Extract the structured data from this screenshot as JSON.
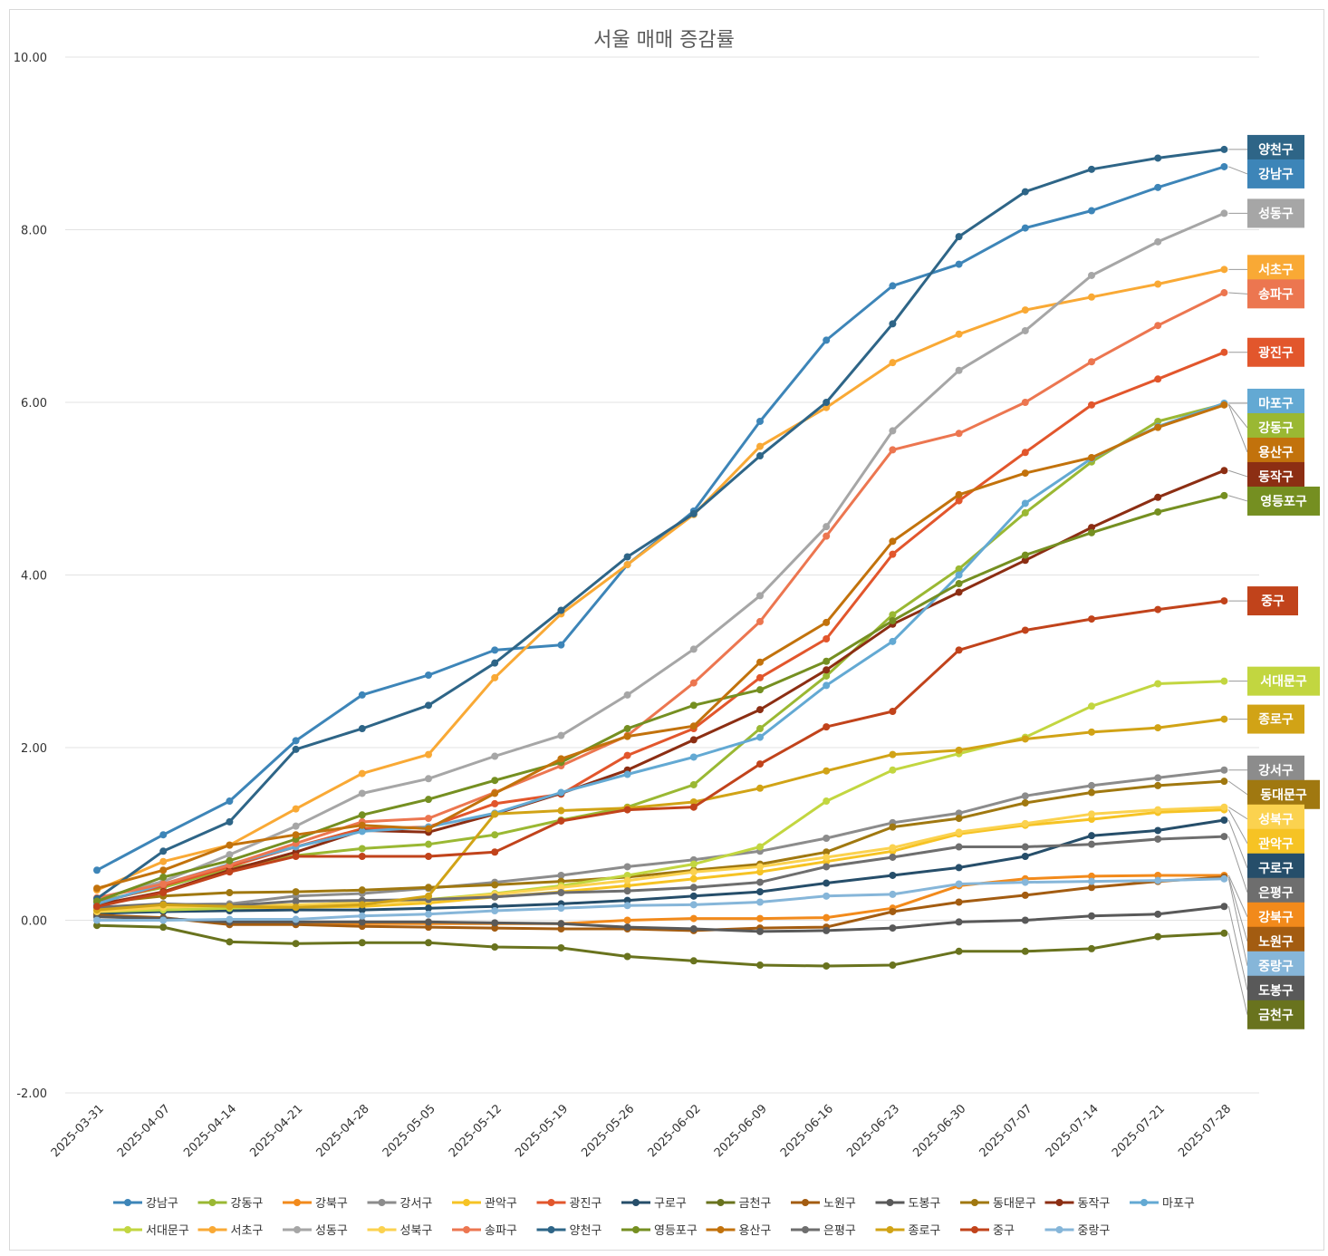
{
  "chart_data": {
    "type": "line",
    "title": "서울 매매 증감률",
    "ylim": [
      -2,
      10
    ],
    "yticks": [
      "10.00",
      "8.00",
      "6.00",
      "4.00",
      "2.00",
      "0.00",
      "-2.00"
    ],
    "grid": true,
    "legend": "bottom",
    "x": [
      "2025-03-31",
      "2025-04-07",
      "2025-04-14",
      "2025-04-21",
      "2025-04-28",
      "2025-05-05",
      "2025-05-12",
      "2025-05-19",
      "2025-05-26",
      "2025-06-02",
      "2025-06-09",
      "2025-06-16",
      "2025-06-23",
      "2025-06-30",
      "2025-07-07",
      "2025-07-14",
      "2025-07-21",
      "2025-07-28"
    ],
    "series": [
      {
        "name": "강남구",
        "color": "#3d85b8",
        "values": [
          0.58,
          0.99,
          1.38,
          2.08,
          2.61,
          2.84,
          3.13,
          3.19,
          4.12,
          4.74,
          5.78,
          6.72,
          7.35,
          7.6,
          8.02,
          8.22,
          8.49,
          8.73
        ]
      },
      {
        "name": "강동구",
        "color": "#9ab833",
        "values": [
          0.22,
          0.38,
          0.6,
          0.75,
          0.83,
          0.88,
          0.99,
          1.16,
          1.31,
          1.57,
          2.22,
          2.83,
          3.54,
          4.07,
          4.72,
          5.31,
          5.78,
          5.98
        ]
      },
      {
        "name": "강북구",
        "color": "#f28a1b",
        "values": [
          0.05,
          0.02,
          -0.02,
          -0.03,
          -0.04,
          -0.04,
          -0.04,
          -0.04,
          0.0,
          0.02,
          0.02,
          0.03,
          0.14,
          0.4,
          0.48,
          0.51,
          0.52,
          0.52
        ]
      },
      {
        "name": "강서구",
        "color": "#8c8c8c",
        "values": [
          0.15,
          0.18,
          0.19,
          0.28,
          0.31,
          0.37,
          0.44,
          0.52,
          0.62,
          0.7,
          0.8,
          0.95,
          1.13,
          1.24,
          1.44,
          1.56,
          1.65,
          1.74
        ]
      },
      {
        "name": "관악구",
        "color": "#f6c324",
        "values": [
          0.08,
          0.12,
          0.14,
          0.15,
          0.16,
          0.2,
          0.27,
          0.33,
          0.4,
          0.48,
          0.56,
          0.68,
          0.8,
          1.0,
          1.1,
          1.17,
          1.25,
          1.28
        ]
      },
      {
        "name": "광진구",
        "color": "#e2562c",
        "values": [
          0.2,
          0.4,
          0.62,
          0.85,
          1.06,
          1.08,
          1.35,
          1.46,
          1.91,
          2.22,
          2.81,
          3.26,
          4.24,
          4.86,
          5.42,
          5.97,
          6.27,
          6.58
        ]
      },
      {
        "name": "구로구",
        "color": "#264e6a",
        "values": [
          0.08,
          0.1,
          0.11,
          0.12,
          0.12,
          0.14,
          0.16,
          0.19,
          0.23,
          0.28,
          0.33,
          0.43,
          0.52,
          0.61,
          0.74,
          0.98,
          1.04,
          1.16
        ]
      },
      {
        "name": "금천구",
        "color": "#69731e",
        "values": [
          -0.06,
          -0.08,
          -0.25,
          -0.27,
          -0.26,
          -0.26,
          -0.31,
          -0.32,
          -0.42,
          -0.47,
          -0.52,
          -0.53,
          -0.52,
          -0.36,
          -0.36,
          -0.33,
          -0.19,
          -0.15
        ]
      },
      {
        "name": "노원구",
        "color": "#a35c11",
        "values": [
          0.06,
          0.03,
          -0.05,
          -0.05,
          -0.07,
          -0.08,
          -0.09,
          -0.1,
          -0.1,
          -0.12,
          -0.09,
          -0.08,
          0.1,
          0.21,
          0.29,
          0.38,
          0.45,
          0.5
        ]
      },
      {
        "name": "도봉구",
        "color": "#595959",
        "values": [
          0.04,
          0.02,
          -0.02,
          -0.02,
          -0.02,
          -0.02,
          -0.03,
          -0.04,
          -0.08,
          -0.1,
          -0.13,
          -0.12,
          -0.09,
          -0.02,
          0.0,
          0.05,
          0.07,
          0.16
        ]
      },
      {
        "name": "동대문구",
        "color": "#a07810",
        "values": [
          0.2,
          0.28,
          0.32,
          0.33,
          0.35,
          0.38,
          0.41,
          0.45,
          0.5,
          0.58,
          0.65,
          0.79,
          1.08,
          1.18,
          1.36,
          1.48,
          1.56,
          1.61
        ]
      },
      {
        "name": "동작구",
        "color": "#8c2e13",
        "values": [
          0.18,
          0.33,
          0.58,
          0.79,
          1.04,
          1.02,
          1.23,
          1.47,
          1.74,
          2.09,
          2.44,
          2.9,
          3.43,
          3.8,
          4.17,
          4.55,
          4.9,
          5.21
        ]
      },
      {
        "name": "마포구",
        "color": "#63a9d3",
        "values": [
          0.19,
          0.42,
          0.65,
          0.85,
          1.03,
          1.08,
          1.24,
          1.48,
          1.69,
          1.89,
          2.12,
          2.72,
          3.23,
          4.0,
          4.83,
          5.35,
          5.72,
          5.99
        ]
      },
      {
        "name": "서대문구",
        "color": "#c2d640",
        "values": [
          0.1,
          0.12,
          0.14,
          0.17,
          0.21,
          0.24,
          0.31,
          0.4,
          0.52,
          0.65,
          0.85,
          1.38,
          1.74,
          1.93,
          2.12,
          2.48,
          2.74,
          2.77
        ]
      },
      {
        "name": "서초구",
        "color": "#f9a935",
        "values": [
          0.35,
          0.68,
          0.87,
          1.29,
          1.7,
          1.92,
          2.81,
          3.55,
          4.12,
          4.7,
          5.49,
          5.94,
          6.46,
          6.79,
          7.07,
          7.22,
          7.37,
          7.54
        ]
      },
      {
        "name": "성동구",
        "color": "#a6a6a6",
        "values": [
          0.25,
          0.45,
          0.76,
          1.09,
          1.47,
          1.64,
          1.9,
          2.14,
          2.61,
          3.14,
          3.76,
          4.56,
          5.67,
          6.37,
          6.83,
          7.47,
          7.86,
          8.19
        ]
      },
      {
        "name": "성북구",
        "color": "#fbd24f",
        "values": [
          0.1,
          0.15,
          0.17,
          0.18,
          0.2,
          0.23,
          0.3,
          0.38,
          0.46,
          0.56,
          0.62,
          0.73,
          0.84,
          1.02,
          1.12,
          1.23,
          1.28,
          1.31
        ]
      },
      {
        "name": "송파구",
        "color": "#ec7650",
        "values": [
          0.26,
          0.42,
          0.64,
          0.89,
          1.14,
          1.18,
          1.48,
          1.79,
          2.14,
          2.75,
          3.46,
          4.45,
          5.45,
          5.64,
          6.0,
          6.47,
          6.89,
          7.27
        ]
      },
      {
        "name": "양천구",
        "color": "#2e6587",
        "values": [
          0.25,
          0.8,
          1.14,
          1.98,
          2.22,
          2.49,
          2.98,
          3.59,
          4.21,
          4.71,
          5.38,
          6.0,
          6.91,
          7.92,
          8.44,
          8.7,
          8.83,
          8.93
        ]
      },
      {
        "name": "영등포구",
        "color": "#758f21",
        "values": [
          0.22,
          0.5,
          0.69,
          0.94,
          1.22,
          1.4,
          1.62,
          1.83,
          2.22,
          2.49,
          2.67,
          3.0,
          3.47,
          3.9,
          4.23,
          4.49,
          4.73,
          4.92
        ]
      },
      {
        "name": "용산구",
        "color": "#c2720c",
        "values": [
          0.37,
          0.58,
          0.87,
          0.99,
          1.1,
          1.06,
          1.47,
          1.87,
          2.13,
          2.25,
          2.99,
          3.45,
          4.39,
          4.93,
          5.18,
          5.36,
          5.71,
          5.97
        ]
      },
      {
        "name": "은평구",
        "color": "#6e6e6e",
        "values": [
          0.15,
          0.19,
          0.17,
          0.22,
          0.23,
          0.24,
          0.27,
          0.32,
          0.34,
          0.38,
          0.44,
          0.62,
          0.73,
          0.85,
          0.85,
          0.88,
          0.94,
          0.97
        ]
      },
      {
        "name": "종로구",
        "color": "#d1a316",
        "values": [
          0.12,
          0.18,
          0.16,
          0.15,
          0.18,
          0.28,
          1.23,
          1.27,
          1.3,
          1.37,
          1.53,
          1.73,
          1.92,
          1.97,
          2.1,
          2.18,
          2.23,
          2.33
        ]
      },
      {
        "name": "중구",
        "color": "#c1431b",
        "values": [
          0.16,
          0.32,
          0.56,
          0.74,
          0.74,
          0.74,
          0.79,
          1.15,
          1.28,
          1.31,
          1.81,
          2.24,
          2.42,
          3.13,
          3.36,
          3.49,
          3.6,
          3.7
        ]
      },
      {
        "name": "중랑구",
        "color": "#86b6d9",
        "values": [
          0.0,
          0.0,
          0.01,
          0.01,
          0.05,
          0.07,
          0.11,
          0.14,
          0.17,
          0.18,
          0.21,
          0.28,
          0.3,
          0.42,
          0.44,
          0.45,
          0.46,
          0.48
        ]
      }
    ]
  }
}
